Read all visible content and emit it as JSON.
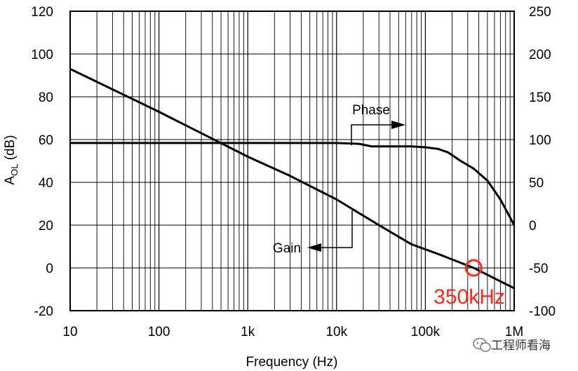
{
  "chart_data": {
    "type": "line",
    "xlabel": "Frequency (Hz)",
    "ylabel_main": "A",
    "ylabel_sub": "OL",
    "ylabel_unit": " (dB)",
    "x_scale": "log",
    "xlim": [
      10,
      1000000
    ],
    "ylim": [
      -20,
      120
    ],
    "y2lim": [
      -100,
      250
    ],
    "grid": true,
    "x_ticks": [
      {
        "value": 10,
        "label": "10"
      },
      {
        "value": 100,
        "label": "100"
      },
      {
        "value": 1000,
        "label": "1k"
      },
      {
        "value": 10000,
        "label": "10k"
      },
      {
        "value": 100000,
        "label": "100k"
      },
      {
        "value": 1000000,
        "label": "1M"
      }
    ],
    "y_ticks": [
      {
        "value": 120,
        "label": "120"
      },
      {
        "value": 100,
        "label": "100"
      },
      {
        "value": 80,
        "label": "80"
      },
      {
        "value": 60,
        "label": "60"
      },
      {
        "value": 40,
        "label": "40"
      },
      {
        "value": 20,
        "label": "20"
      },
      {
        "value": 0,
        "label": "0"
      },
      {
        "value": -20,
        "label": "-20"
      }
    ],
    "y2_ticks": [
      {
        "value": 250,
        "label": "250"
      },
      {
        "value": 200,
        "label": "200"
      },
      {
        "value": 150,
        "label": "150"
      },
      {
        "value": 100,
        "label": "100"
      },
      {
        "value": 50,
        "label": "50"
      },
      {
        "value": 0,
        "label": "0"
      },
      {
        "value": -50,
        "label": "-50"
      },
      {
        "value": -100,
        "label": "-100"
      }
    ],
    "series": [
      {
        "name": "Gain",
        "axis": "left",
        "points": [
          [
            10,
            93
          ],
          [
            100,
            73
          ],
          [
            1000,
            52
          ],
          [
            3000,
            43
          ],
          [
            10000,
            32
          ],
          [
            30000,
            20
          ],
          [
            70000,
            11
          ],
          [
            150000,
            6
          ],
          [
            350000,
            0
          ],
          [
            1000000,
            -9.5
          ]
        ]
      },
      {
        "name": "Phase",
        "axis": "right",
        "points": [
          [
            10,
            96
          ],
          [
            10000,
            96
          ],
          [
            18000,
            95
          ],
          [
            25000,
            92
          ],
          [
            40000,
            92
          ],
          [
            70000,
            92
          ],
          [
            100000,
            91
          ],
          [
            140000,
            89
          ],
          [
            180000,
            85
          ],
          [
            250000,
            75
          ],
          [
            350000,
            66
          ],
          [
            500000,
            52
          ],
          [
            700000,
            30
          ],
          [
            1000000,
            0
          ]
        ]
      }
    ],
    "annotations": [
      {
        "text": "Phase",
        "series": "Phase"
      },
      {
        "text": "Gain",
        "series": "Gain"
      }
    ],
    "marker": {
      "text": "350kHz",
      "x": 350000,
      "y": 0,
      "color": "#ff2a1a"
    }
  },
  "watermark": {
    "text": "工程师看海",
    "icon": "wechat-icon"
  }
}
